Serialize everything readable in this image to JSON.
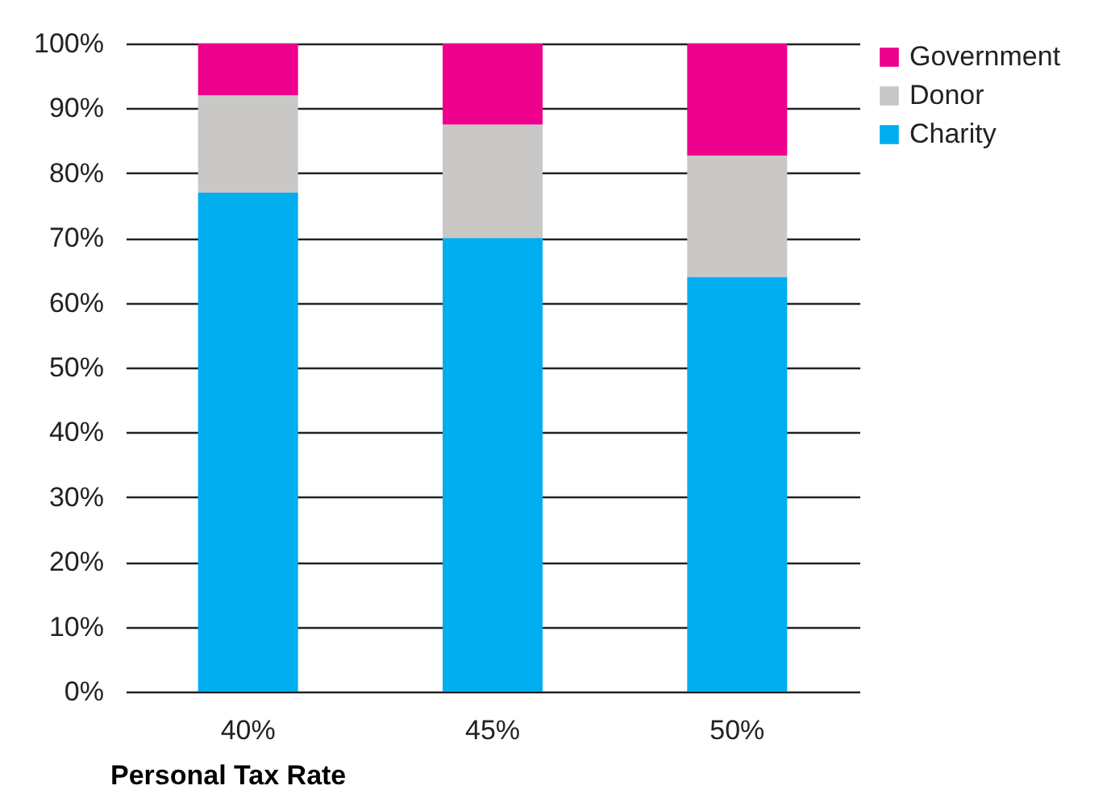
{
  "chart_data": {
    "type": "bar",
    "stacked": true,
    "xlabel": "Personal Tax Rate",
    "categories": [
      "40%",
      "45%",
      "50%"
    ],
    "series": [
      {
        "name": "Charity",
        "color": "#00aeef",
        "values": [
          77,
          70,
          64
        ]
      },
      {
        "name": "Donor",
        "color": "#c9c8c7",
        "values": [
          15,
          17.5,
          18.7
        ]
      },
      {
        "name": "Government",
        "color": "#ec008c",
        "values": [
          8,
          12.5,
          17.3
        ]
      }
    ],
    "ylim": [
      0,
      100
    ],
    "yticks": [
      {
        "value": 0,
        "label": "0%"
      },
      {
        "value": 10,
        "label": "10%"
      },
      {
        "value": 20,
        "label": "20%"
      },
      {
        "value": 30,
        "label": "30%"
      },
      {
        "value": 40,
        "label": "40%"
      },
      {
        "value": 50,
        "label": "50%"
      },
      {
        "value": 60,
        "label": "60%"
      },
      {
        "value": 70,
        "label": "70%"
      },
      {
        "value": 80,
        "label": "80%"
      },
      {
        "value": 90,
        "label": "90%"
      },
      {
        "value": 100,
        "label": "100%"
      }
    ],
    "grid": "y",
    "legend": "right"
  }
}
